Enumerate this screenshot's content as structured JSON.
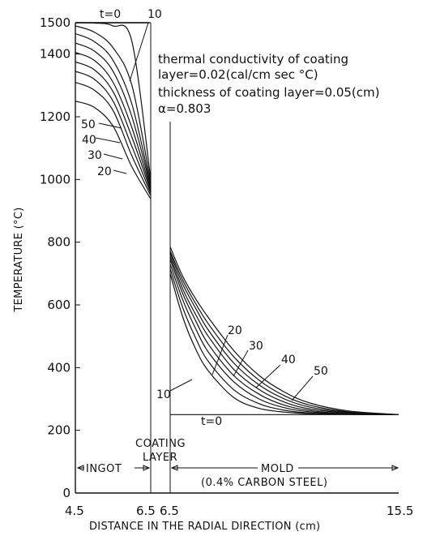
{
  "chart_data": {
    "type": "line",
    "xlabel": "DISTANCE IN THE RADIAL DIRECTION (cm)",
    "ylabel": "TEMPERATURE (°C)",
    "xlim": [
      4.5,
      15.5
    ],
    "ylim": [
      0,
      1500
    ],
    "x_tick_labels": [
      "4.5",
      "6.5",
      "6.5",
      "15.5"
    ],
    "y_ticks": [
      0,
      200,
      400,
      600,
      800,
      1000,
      1200,
      1400,
      1500
    ],
    "annotations": {
      "line1": "thermal conductivity of coating",
      "line2": "layer=0.02(cal/cm sec °C)",
      "line3": "thickness of coating layer=0.05(cm)",
      "line4": "α=0.803"
    },
    "regions": {
      "ingot": "INGOT",
      "coating_1": "COATING",
      "coating_2": "LAYER",
      "mold_1": "MOLD",
      "mold_2": "(0.4% CARBON STEEL)"
    },
    "curve_labels": {
      "ingot_top": [
        "t=0",
        "10"
      ],
      "ingot_left": [
        "50",
        "40",
        "30",
        "20"
      ],
      "mold": [
        "10",
        "20",
        "30",
        "40",
        "50"
      ],
      "mold_base": "t=0"
    },
    "ingot_x": [
      4.5,
      5.0,
      5.5,
      6.0,
      6.5
    ],
    "ingot_series": [
      {
        "label": "t=0",
        "values": [
          1500,
          1500,
          1500,
          1500,
          1500
        ]
      },
      {
        "label": "10",
        "values": [
          1500,
          1499,
          1490,
          1440,
          1000
        ]
      },
      {
        "label": "",
        "values": [
          1490,
          1470,
          1420,
          1300,
          990
        ]
      },
      {
        "label": "",
        "values": [
          1465,
          1440,
          1380,
          1240,
          980
        ]
      },
      {
        "label": "",
        "values": [
          1435,
          1410,
          1345,
          1200,
          975
        ]
      },
      {
        "label": "",
        "values": [
          1405,
          1380,
          1310,
          1165,
          968
        ]
      },
      {
        "label": "20",
        "values": [
          1375,
          1350,
          1280,
          1135,
          962
        ]
      },
      {
        "label": "30",
        "values": [
          1345,
          1320,
          1250,
          1105,
          955
        ]
      },
      {
        "label": "40",
        "values": [
          1310,
          1285,
          1220,
          1075,
          948
        ]
      },
      {
        "label": "50",
        "values": [
          1250,
          1230,
          1170,
          1040,
          938
        ]
      }
    ],
    "mold_x": [
      6.5,
      7.0,
      7.5,
      8.0,
      9.0,
      10.0,
      11.0,
      12.0,
      13.5,
      15.5
    ],
    "mold_series": [
      {
        "label": "t=0",
        "values": [
          250,
          250,
          250,
          250,
          250,
          250,
          250,
          250,
          250,
          250
        ]
      },
      {
        "label": "10",
        "values": [
          700,
          560,
          460,
          390,
          305,
          270,
          258,
          253,
          251,
          250
        ]
      },
      {
        "label": "",
        "values": [
          715,
          590,
          495,
          420,
          330,
          285,
          264,
          255,
          251,
          250
        ]
      },
      {
        "label": "20",
        "values": [
          730,
          615,
          525,
          450,
          355,
          300,
          272,
          259,
          252,
          250
        ]
      },
      {
        "label": "",
        "values": [
          745,
          635,
          550,
          475,
          375,
          315,
          280,
          263,
          253,
          250
        ]
      },
      {
        "label": "30",
        "values": [
          755,
          650,
          570,
          500,
          395,
          330,
          290,
          268,
          255,
          250
        ]
      },
      {
        "label": "",
        "values": [
          765,
          665,
          590,
          520,
          415,
          345,
          300,
          274,
          257,
          250
        ]
      },
      {
        "label": "40",
        "values": [
          772,
          678,
          605,
          540,
          435,
          360,
          310,
          280,
          259,
          250
        ]
      },
      {
        "label": "50",
        "values": [
          785,
          690,
          620,
          560,
          455,
          375,
          322,
          287,
          262,
          250
        ]
      }
    ]
  }
}
